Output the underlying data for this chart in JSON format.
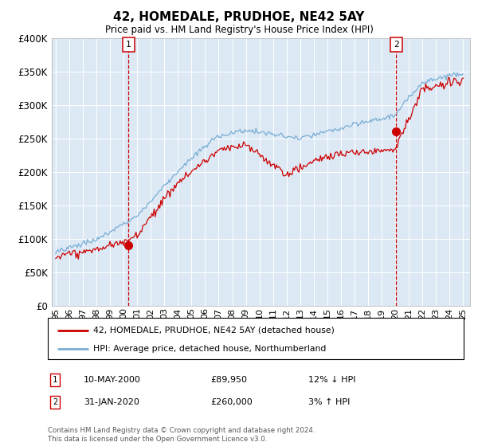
{
  "title": "42, HOMEDALE, PRUDHOE, NE42 5AY",
  "subtitle": "Price paid vs. HM Land Registry's House Price Index (HPI)",
  "ylabel_ticks": [
    "£0",
    "£50K",
    "£100K",
    "£150K",
    "£200K",
    "£250K",
    "£300K",
    "£350K",
    "£400K"
  ],
  "ytick_values": [
    0,
    50000,
    100000,
    150000,
    200000,
    250000,
    300000,
    350000,
    400000
  ],
  "ylim": [
    0,
    400000
  ],
  "xlim_start": 1994.7,
  "xlim_end": 2025.5,
  "plot_bg_color": "#dce9f5",
  "hpi_color": "#7aadd4",
  "price_color": "#cc0000",
  "vline_color": "#cc0000",
  "marker1_x": 2000.36,
  "marker1_y": 89950,
  "marker2_x": 2020.08,
  "marker2_y": 260000,
  "legend_label1": "42, HOMEDALE, PRUDHOE, NE42 5AY (detached house)",
  "legend_label2": "HPI: Average price, detached house, Northumberland",
  "table_row1": [
    "1",
    "10-MAY-2000",
    "£89,950",
    "12% ↓ HPI"
  ],
  "table_row2": [
    "2",
    "31-JAN-2020",
    "£260,000",
    "3% ↑ HPI"
  ],
  "footnote": "Contains HM Land Registry data © Crown copyright and database right 2024.\nThis data is licensed under the Open Government Licence v3.0.",
  "xtick_years": [
    1995,
    1996,
    1997,
    1998,
    1999,
    2000,
    2001,
    2002,
    2003,
    2004,
    2005,
    2006,
    2007,
    2008,
    2009,
    2010,
    2011,
    2012,
    2013,
    2014,
    2015,
    2016,
    2017,
    2018,
    2019,
    2020,
    2021,
    2022,
    2023,
    2024,
    2025
  ]
}
